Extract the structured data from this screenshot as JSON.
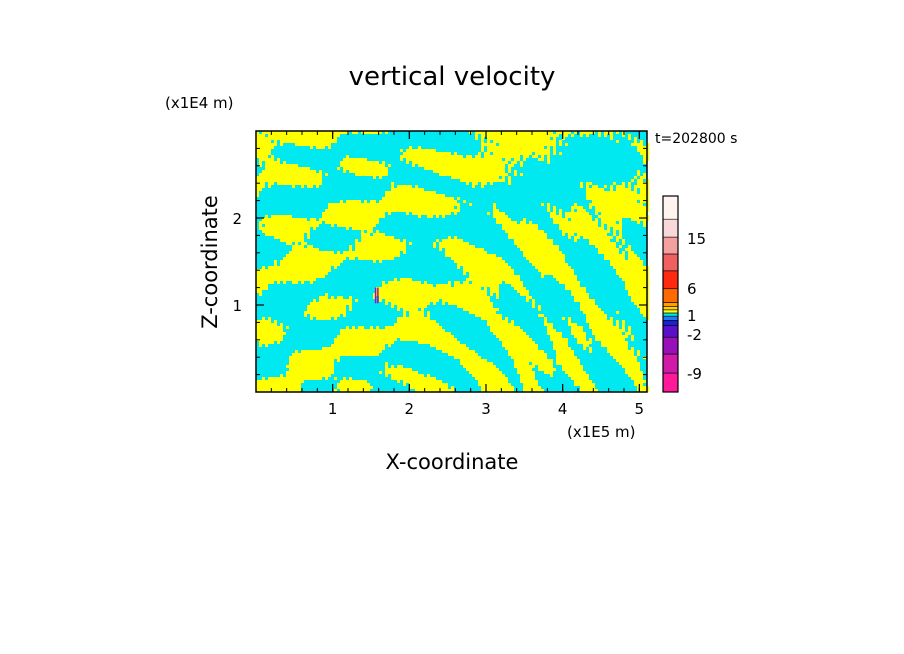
{
  "chart_data": {
    "type": "heatmap",
    "title": "vertical velocity",
    "xlabel": "X-coordinate",
    "ylabel": "Z-coordinate",
    "x_unit": "(x1E5 m)",
    "y_unit": "(x1E4 m)",
    "time_label": "t=202800 s",
    "xlim": [
      0,
      5.1
    ],
    "ylim": [
      0,
      3.0
    ],
    "x_ticks": [
      1,
      2,
      3,
      4,
      5
    ],
    "y_ticks": [
      1,
      2
    ],
    "colorbar": {
      "tick_labels": [
        "15",
        "6",
        "1",
        "-2",
        "-9"
      ],
      "levels": [
        15,
        6,
        1,
        -2,
        -9
      ],
      "segments": [
        {
          "color": "#ff1a9c"
        },
        {
          "color": "#d01aa8"
        },
        {
          "color": "#9810b8"
        },
        {
          "color": "#5a10c8"
        },
        {
          "color": "#1a20d8"
        },
        {
          "color": "#1e7ef0"
        },
        {
          "color": "#00e8f0"
        },
        {
          "color": "#ffff00"
        },
        {
          "color": "#ffd000"
        },
        {
          "color": "#ffa000"
        },
        {
          "color": "#ff6a00"
        },
        {
          "color": "#ff2a10"
        },
        {
          "color": "#f06060"
        },
        {
          "color": "#f4a0a0"
        },
        {
          "color": "#f8d8d8"
        },
        {
          "color": "#fff4f0"
        }
      ]
    },
    "field_colors": {
      "positive": "#ffff00",
      "negative": "#00e8f0"
    },
    "grid": false
  }
}
